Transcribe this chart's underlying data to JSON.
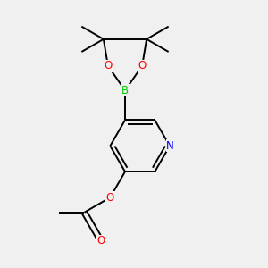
{
  "background_color": "#f0f0f0",
  "bond_color": "#000000",
  "atom_colors": {
    "O": "#ff0000",
    "B": "#00cc00",
    "N": "#0000ff",
    "C": "#000000"
  },
  "figsize": [
    3.0,
    3.0
  ],
  "dpi": 100,
  "bond_lw": 1.4,
  "font_size": 8.5
}
